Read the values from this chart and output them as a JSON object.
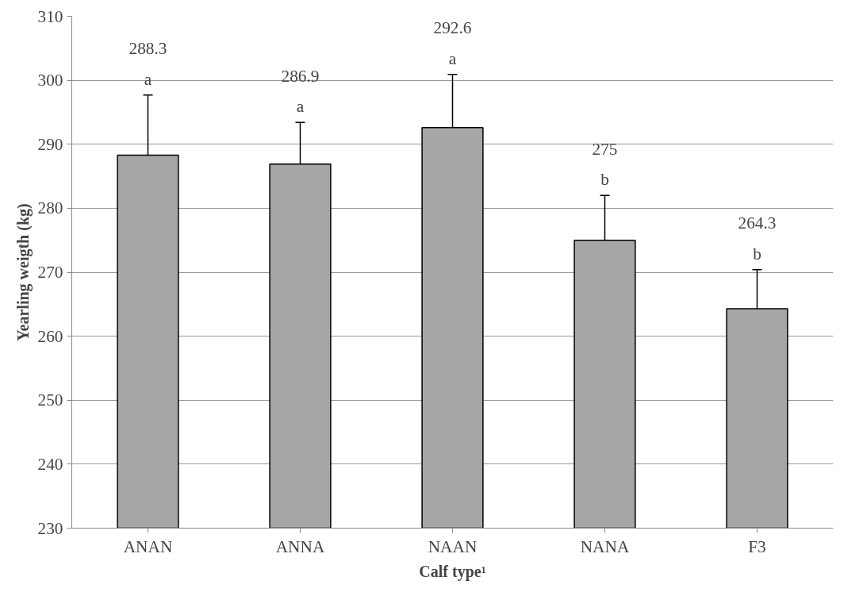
{
  "chart_data": {
    "type": "bar",
    "xlabel": "Calf type¹",
    "ylabel": "Yearling weigth (kg)",
    "categories": [
      "ANAN",
      "ANNA",
      "NAAN",
      "NANA",
      "F3"
    ],
    "values": [
      288.3,
      286.9,
      292.6,
      275,
      264.3
    ],
    "errors": [
      9.4,
      6.5,
      8.3,
      7.0,
      6.1
    ],
    "color": "#a6a6a6",
    "annotations": [
      "288.3\na",
      "286.9\na",
      "292.6\na",
      "275\nb",
      "264.3\nb"
    ],
    "ylim": [
      230,
      310
    ],
    "yticks": [
      230,
      240,
      250,
      260,
      270,
      280,
      290,
      300,
      310
    ],
    "grid": "y"
  }
}
